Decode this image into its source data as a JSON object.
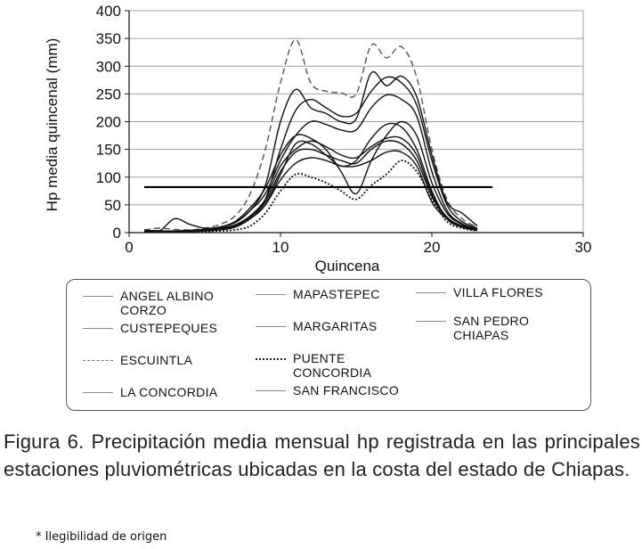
{
  "chart_data": {
    "type": "line",
    "xlabel": "Quincena",
    "ylabel": "Hp media quincenal (mm)",
    "xlim": [
      0,
      30
    ],
    "ylim": [
      0,
      400
    ],
    "x_ticks": [
      "0",
      "10",
      "20",
      "30"
    ],
    "y_ticks": [
      "0",
      "50",
      "100",
      "150",
      "200",
      "250",
      "300",
      "350",
      "400"
    ],
    "legend_position": "bottom",
    "threshold_line": {
      "y": 82,
      "x_start": 1,
      "x_end": 24
    },
    "series": [
      {
        "name": "ANGEL ALBINO CORZO",
        "line": "solid",
        "x": [
          1,
          2,
          3,
          4,
          5,
          6,
          7,
          8,
          9,
          10,
          11,
          12,
          13,
          14,
          15,
          16,
          17,
          18,
          19,
          20,
          21,
          22,
          23
        ],
        "y": [
          4,
          3,
          2,
          3,
          4,
          6,
          10,
          25,
          50,
          95,
          125,
          135,
          130,
          120,
          120,
          130,
          145,
          145,
          120,
          55,
          25,
          12,
          6
        ]
      },
      {
        "name": "CUSTEPEQUES",
        "line": "solid",
        "x": [
          1,
          2,
          3,
          4,
          5,
          6,
          7,
          8,
          9,
          10,
          11,
          12,
          13,
          14,
          15,
          16,
          17,
          18,
          19,
          20,
          21,
          22,
          23
        ],
        "y": [
          3,
          2,
          2,
          3,
          5,
          8,
          14,
          30,
          60,
          150,
          220,
          240,
          225,
          210,
          215,
          255,
          280,
          270,
          230,
          130,
          50,
          20,
          8
        ]
      },
      {
        "name": "ESCUINTLA",
        "line": "dashed",
        "x": [
          1,
          2,
          3,
          4,
          5,
          6,
          7,
          8,
          9,
          10,
          11,
          12,
          13,
          14,
          15,
          16,
          17,
          18,
          19,
          20,
          21,
          22,
          23
        ],
        "y": [
          5,
          8,
          6,
          5,
          8,
          15,
          30,
          70,
          150,
          270,
          348,
          270,
          255,
          252,
          250,
          338,
          315,
          335,
          280,
          150,
          60,
          25,
          10
        ]
      },
      {
        "name": "LA CONCORDIA",
        "line": "solid",
        "x": [
          1,
          2,
          3,
          4,
          5,
          6,
          7,
          8,
          9,
          10,
          11,
          12,
          13,
          14,
          15,
          16,
          17,
          18,
          19,
          20,
          21,
          22,
          23
        ],
        "y": [
          2,
          2,
          1,
          2,
          3,
          5,
          10,
          25,
          50,
          105,
          160,
          160,
          140,
          120,
          130,
          170,
          195,
          190,
          150,
          75,
          25,
          10,
          4
        ]
      },
      {
        "name": "MAPASTEPEC",
        "line": "solid",
        "x": [
          1,
          2,
          3,
          4,
          5,
          6,
          7,
          8,
          9,
          10,
          11,
          12,
          13,
          14,
          15,
          16,
          17,
          18,
          19,
          20,
          21,
          22,
          23
        ],
        "y": [
          3,
          3,
          2,
          3,
          6,
          10,
          18,
          40,
          85,
          200,
          258,
          225,
          215,
          200,
          205,
          288,
          265,
          282,
          245,
          140,
          55,
          35,
          12
        ]
      },
      {
        "name": "MARGARITAS",
        "line": "solid",
        "x": [
          1,
          2,
          3,
          4,
          5,
          6,
          7,
          8,
          9,
          10,
          11,
          12,
          13,
          14,
          15,
          16,
          17,
          18,
          19,
          20,
          21,
          22,
          23
        ],
        "y": [
          4,
          3,
          3,
          4,
          6,
          10,
          20,
          45,
          80,
          140,
          175,
          170,
          150,
          110,
          70,
          130,
          175,
          200,
          175,
          90,
          35,
          15,
          6
        ]
      },
      {
        "name": "PUENTE CONCORDIA",
        "line": "dotted",
        "x": [
          1,
          2,
          3,
          4,
          5,
          6,
          7,
          8,
          9,
          10,
          11,
          12,
          13,
          14,
          15,
          16,
          17,
          18,
          19,
          20,
          21,
          22,
          23
        ],
        "y": [
          1,
          1,
          1,
          1,
          2,
          3,
          5,
          12,
          35,
          75,
          105,
          100,
          90,
          75,
          60,
          85,
          105,
          130,
          110,
          60,
          20,
          8,
          3
        ]
      },
      {
        "name": "SAN FRANCISCO",
        "line": "solid",
        "x": [
          1,
          2,
          3,
          4,
          5,
          6,
          7,
          8,
          9,
          10,
          11,
          12,
          13,
          14,
          15,
          16,
          17,
          18,
          19,
          20,
          21,
          22,
          23
        ],
        "y": [
          2,
          2,
          2,
          3,
          4,
          7,
          12,
          30,
          60,
          120,
          150,
          165,
          155,
          140,
          135,
          155,
          170,
          170,
          140,
          70,
          28,
          12,
          5
        ]
      },
      {
        "name": "SAN PEDRO CHIAPAS",
        "line": "solid",
        "x": [
          1,
          2,
          3,
          4,
          5,
          6,
          7,
          8,
          9,
          10,
          11,
          12,
          13,
          14,
          15,
          16,
          17,
          18,
          19,
          20,
          21,
          22,
          23
        ],
        "y": [
          3,
          3,
          25,
          15,
          8,
          10,
          18,
          40,
          70,
          130,
          175,
          200,
          195,
          185,
          185,
          225,
          248,
          240,
          210,
          110,
          40,
          16,
          6
        ]
      },
      {
        "name": "VILLA FLORES",
        "line": "solid",
        "x": [
          1,
          2,
          3,
          4,
          5,
          6,
          7,
          8,
          9,
          10,
          11,
          12,
          13,
          14,
          15,
          16,
          17,
          18,
          19,
          20,
          21,
          22,
          23
        ],
        "y": [
          2,
          2,
          1,
          2,
          4,
          6,
          12,
          28,
          55,
          110,
          145,
          150,
          140,
          130,
          125,
          150,
          165,
          160,
          130,
          65,
          25,
          10,
          4
        ]
      }
    ]
  },
  "legend": {
    "items": [
      {
        "label": "ANGEL ALBINO CORZO",
        "line": "solid"
      },
      {
        "label": "MAPASTEPEC",
        "line": "solid"
      },
      {
        "label": "VILLA FLORES",
        "line": "solid"
      },
      {
        "label": "CUSTEPEQUES",
        "line": "solid"
      },
      {
        "label": "MARGARITAS",
        "line": "solid"
      },
      {
        "label": "SAN PEDRO CHIAPAS",
        "line": "solid"
      },
      {
        "label": "ESCUINTLA",
        "line": "dashed"
      },
      {
        "label": "PUENTE CONCORDIA",
        "line": "dotted"
      },
      {
        "label": "LA CONCORDIA",
        "line": "solid"
      },
      {
        "label": "SAN FRANCISCO",
        "line": "solid"
      }
    ]
  },
  "caption": "Figura 6. Precipitación media mensual hp registrada en las principales estaciones pluviométricas ubicadas en la costa del estado de Chiapas.",
  "footnote": "* Ilegibilidad de origen",
  "colors": {
    "axis": "#111111",
    "grid": "#a0a0a0",
    "series": "#111111",
    "legend_swatch": "#8a8a8a"
  }
}
